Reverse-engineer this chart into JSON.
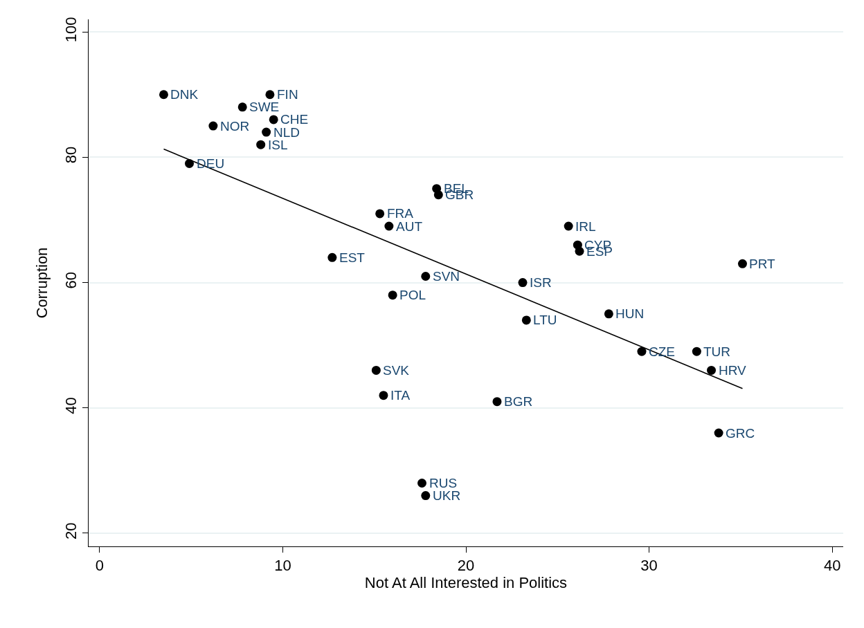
{
  "chart_data": {
    "type": "scatter",
    "xlabel": "Not At All Interested in Politics",
    "ylabel": "Corruption",
    "xlim": [
      -0.6,
      40.6
    ],
    "xticks": [
      0,
      10,
      20,
      30,
      40
    ],
    "ylim": [
      17.9,
      102
    ],
    "yticks": [
      20,
      40,
      60,
      80,
      100
    ],
    "grid": "y",
    "marker": "circle",
    "series": [
      {
        "color": "#000000",
        "x": [
          3.5,
          9.3,
          7.8,
          9.5,
          6.2,
          9.1,
          8.8,
          4.9,
          18.4,
          18.5,
          15.3,
          15.8,
          12.7,
          17.8,
          16.0,
          25.6,
          26.1,
          26.2,
          35.1,
          23.1,
          27.8,
          23.3,
          29.6,
          32.6,
          33.4,
          33.8,
          21.7,
          15.1,
          15.5,
          17.6,
          17.8
        ],
        "values": [
          90,
          90,
          88,
          86,
          85,
          84,
          82,
          79,
          75,
          74,
          71,
          69,
          64,
          61,
          58,
          69,
          66,
          65,
          63,
          60,
          55,
          54,
          49,
          49,
          46,
          36,
          41,
          46,
          42,
          28,
          26
        ]
      },
      {
        "type": "line",
        "color": "#000000",
        "x": [
          3.5,
          35.1
        ],
        "values": [
          81.3,
          43.1
        ],
        "line_style": "solid",
        "marker": "none"
      }
    ],
    "annotations": [
      {
        "text": "DNK",
        "x": 3.5,
        "y": 90
      },
      {
        "text": "FIN",
        "x": 9.3,
        "y": 90
      },
      {
        "text": "SWE",
        "x": 7.8,
        "y": 88
      },
      {
        "text": "CHE",
        "x": 9.5,
        "y": 86
      },
      {
        "text": "NOR",
        "x": 6.2,
        "y": 85
      },
      {
        "text": "NLD",
        "x": 9.1,
        "y": 84
      },
      {
        "text": "ISL",
        "x": 8.8,
        "y": 82
      },
      {
        "text": "DEU",
        "x": 4.9,
        "y": 79
      },
      {
        "text": "BEL",
        "x": 18.4,
        "y": 75
      },
      {
        "text": "GBR",
        "x": 18.5,
        "y": 74
      },
      {
        "text": "FRA",
        "x": 15.3,
        "y": 71
      },
      {
        "text": "AUT",
        "x": 15.8,
        "y": 69
      },
      {
        "text": "EST",
        "x": 12.7,
        "y": 64
      },
      {
        "text": "SVN",
        "x": 17.8,
        "y": 61
      },
      {
        "text": "POL",
        "x": 16.0,
        "y": 58
      },
      {
        "text": "IRL",
        "x": 25.6,
        "y": 69
      },
      {
        "text": "CYP",
        "x": 26.1,
        "y": 66
      },
      {
        "text": "ESP",
        "x": 26.2,
        "y": 65
      },
      {
        "text": "PRT",
        "x": 35.1,
        "y": 63
      },
      {
        "text": "ISR",
        "x": 23.1,
        "y": 60
      },
      {
        "text": "HUN",
        "x": 27.8,
        "y": 55
      },
      {
        "text": "LTU",
        "x": 23.3,
        "y": 54
      },
      {
        "text": "CZE",
        "x": 29.6,
        "y": 49
      },
      {
        "text": "TUR",
        "x": 32.6,
        "y": 49
      },
      {
        "text": "HRV",
        "x": 33.4,
        "y": 46
      },
      {
        "text": "GRC",
        "x": 33.8,
        "y": 36
      },
      {
        "text": "BGR",
        "x": 21.7,
        "y": 41
      },
      {
        "text": "SVK",
        "x": 15.1,
        "y": 46
      },
      {
        "text": "ITA",
        "x": 15.5,
        "y": 42
      },
      {
        "text": "RUS",
        "x": 17.6,
        "y": 28
      },
      {
        "text": "UKR",
        "x": 17.8,
        "y": 26
      }
    ]
  }
}
